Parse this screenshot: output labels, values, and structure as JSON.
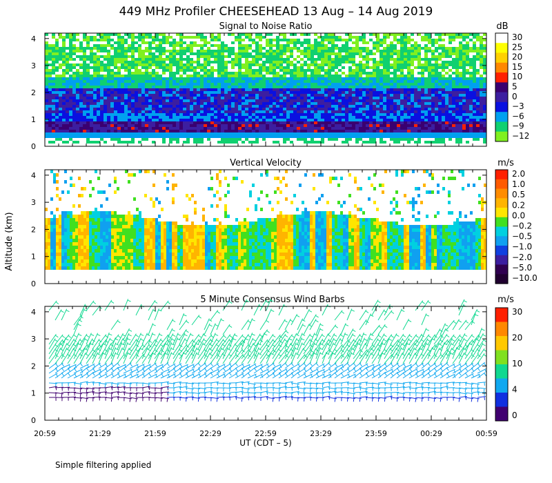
{
  "title": "449 MHz Profiler CHEESEHEAD 13 Aug – 14 Aug 2019",
  "footnote": "Simple filtering applied",
  "chart_data": {
    "type": "heatmap",
    "ylabel": "Altitude (km)",
    "xlabel": "UT  (CDT – 5)",
    "x_ticks": [
      "20:59",
      "21:29",
      "21:59",
      "22:29",
      "22:59",
      "23:29",
      "23:59",
      "00:29",
      "00:59"
    ],
    "y_ticks": [
      "0",
      "1",
      "2",
      "3",
      "4"
    ],
    "ylim": [
      0,
      4.2
    ],
    "panels": [
      {
        "id": "snr",
        "title": "Signal to Noise Ratio",
        "unit": "dB",
        "colorbar": {
          "labels": [
            "30",
            "25",
            "20",
            "15",
            "10",
            "5",
            "0",
            "−3",
            "−6",
            "−9",
            "−12"
          ],
          "colors": [
            "#ffffff",
            "#ffff00",
            "#ffd000",
            "#ff8800",
            "#ff2000",
            "#3a0070",
            "#3c1ea0",
            "#0a10e0",
            "#00a0f0",
            "#10d070",
            "#80f020"
          ]
        }
      },
      {
        "id": "vertical-velocity",
        "title": "Vertical Velocity",
        "unit": "m/s",
        "colorbar": {
          "labels": [
            "2.0",
            "1.0",
            "0.5",
            "0.2",
            "0.0",
            "−0.2",
            "−0.5",
            "−1.0",
            "−2.0",
            "−5.0",
            "−10.0"
          ],
          "colors": [
            "#ff2000",
            "#ff5a00",
            "#ff8c00",
            "#ffb400",
            "#ffe600",
            "#40e020",
            "#00d0e0",
            "#10a0f0",
            "#1040e0",
            "#3c1ea0",
            "#300050",
            "#200030"
          ]
        }
      },
      {
        "id": "wind-barbs",
        "title": "5 Minute Consensus Wind Barbs",
        "unit": "m/s",
        "colorbar": {
          "labels": [
            "30",
            "20",
            "10",
            "4",
            "0"
          ],
          "colors": [
            "#ff2000",
            "#ff8800",
            "#ffc800",
            "#80e020",
            "#10d890",
            "#10a8f0",
            "#1030e0",
            "#400070"
          ]
        }
      }
    ]
  }
}
